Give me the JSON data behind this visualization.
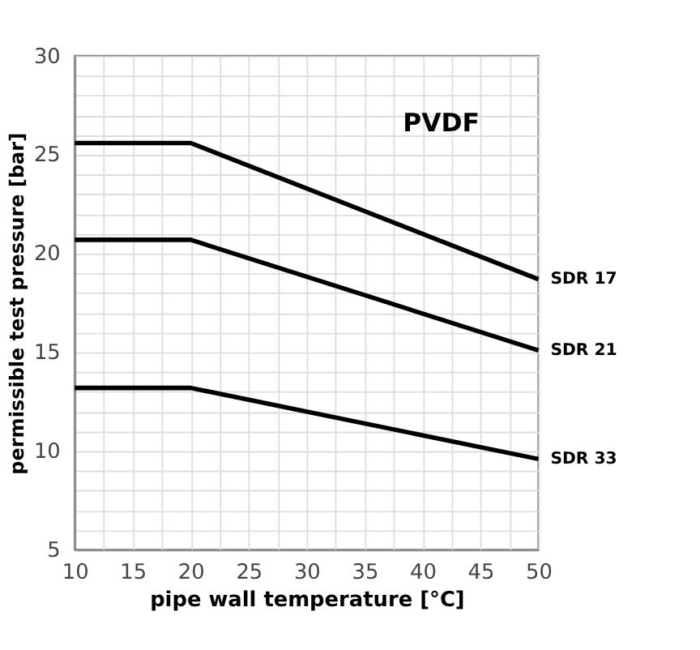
{
  "chart_data": {
    "type": "line",
    "xlabel": "pipe wall temperature [°C]",
    "ylabel": "permissible test pressure [bar]",
    "annotations": [
      "PVDF"
    ],
    "x": [
      10,
      20,
      50
    ],
    "series": [
      {
        "name": "SDR 17",
        "color": "#000000",
        "values": [
          25.6,
          25.6,
          18.7
        ]
      },
      {
        "name": "SDR 21",
        "color": "#000000",
        "values": [
          20.7,
          20.7,
          15.1
        ]
      },
      {
        "name": "SDR 33",
        "color": "#000000",
        "values": [
          13.2,
          13.2,
          9.6
        ]
      }
    ],
    "xlim": [
      10,
      50
    ],
    "xticks": [
      10,
      {
        "value": 12.5,
        "label": null
      },
      15,
      {
        "value": 17.5,
        "label": null
      },
      20,
      {
        "value": 22.5,
        "label": null
      },
      25,
      {
        "value": 27.5,
        "label": null
      },
      30,
      {
        "value": 32.5,
        "label": null
      },
      35,
      {
        "value": 37.5,
        "label": null
      },
      40,
      {
        "value": 42.5,
        "label": null
      },
      45,
      {
        "value": 47.5,
        "label": null
      },
      50
    ],
    "ylim": [
      5,
      30
    ],
    "yticks": [
      5,
      {
        "value": 6,
        "label": null
      },
      {
        "value": 7,
        "label": null
      },
      {
        "value": 8,
        "label": null
      },
      {
        "value": 9,
        "label": null
      },
      10,
      {
        "value": 11,
        "label": null
      },
      {
        "value": 12,
        "label": null
      },
      {
        "value": 13,
        "label": null
      },
      {
        "value": 14,
        "label": null
      },
      15,
      {
        "value": 16,
        "label": null
      },
      {
        "value": 17,
        "label": null
      },
      {
        "value": 18,
        "label": null
      },
      {
        "value": 19,
        "label": null
      },
      20,
      {
        "value": 21,
        "label": null
      },
      {
        "value": 22,
        "label": null
      },
      {
        "value": 23,
        "label": null
      },
      {
        "value": 24,
        "label": null
      },
      25,
      {
        "value": 26,
        "label": null
      },
      {
        "value": 27,
        "label": null
      },
      {
        "value": 28,
        "label": null
      },
      {
        "value": 29,
        "label": null
      },
      30
    ],
    "grid": true,
    "legend": false,
    "marker": "none",
    "line_style": "solid"
  }
}
